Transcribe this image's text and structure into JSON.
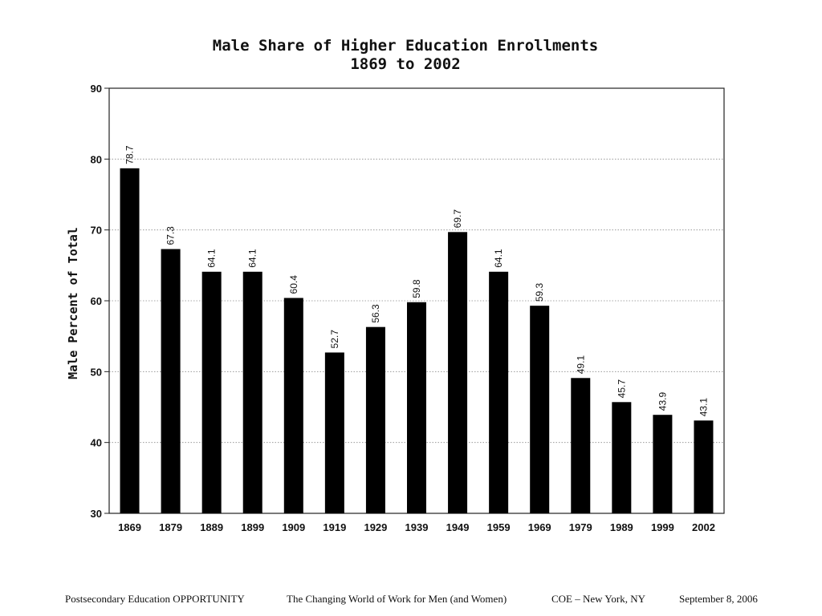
{
  "chart_data": {
    "type": "bar",
    "title": "Male Share of Higher Education Enrollments",
    "subtitle": "1869 to 2002",
    "xlabel": "",
    "ylabel": "Male Percent of Total",
    "ylim": [
      30,
      90
    ],
    "yticks": [
      30,
      40,
      50,
      60,
      70,
      80,
      90
    ],
    "grid": true,
    "bar_color": "#000000",
    "categories": [
      "1869",
      "1879",
      "1889",
      "1899",
      "1909",
      "1919",
      "1929",
      "1939",
      "1949",
      "1959",
      "1969",
      "1979",
      "1989",
      "1999",
      "2002"
    ],
    "values": [
      78.7,
      67.3,
      64.1,
      64.1,
      60.4,
      52.7,
      56.3,
      59.8,
      69.7,
      64.1,
      59.3,
      49.1,
      45.7,
      43.9,
      43.1
    ],
    "value_labels": [
      "78.7",
      "67.3",
      "64.1",
      "64.1",
      "60.4",
      "52.7",
      "56.3",
      "59.8",
      "69.7",
      "64.1",
      "59.3",
      "49.1",
      "45.7",
      "43.9",
      "43.1"
    ]
  },
  "footer": {
    "item1": "Postsecondary Education OPPORTUNITY",
    "item2": "The Changing World of Work for Men (and Women)",
    "item3": "COE – New York, NY",
    "item4": "September 8, 2006"
  }
}
